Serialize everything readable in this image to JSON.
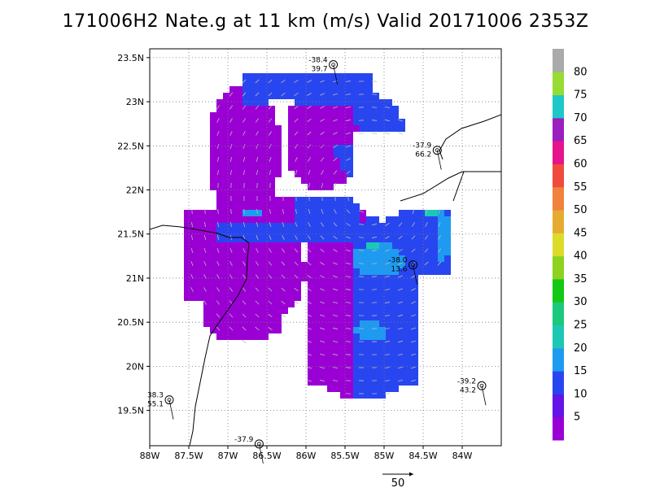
{
  "title": "171006H2 Nate.g at 11 km (m/s) Valid 20171006 2353Z",
  "chart_data": {
    "type": "heatmap",
    "description_units": "wind speed (m/s)",
    "xlim": [
      -88.0,
      -83.5
    ],
    "ylim": [
      19.1,
      23.6
    ],
    "x_ticks": [
      -88.0,
      -87.5,
      -87.0,
      -86.5,
      -86.0,
      -85.5,
      -85.0,
      -84.5,
      -84.0
    ],
    "x_tick_labels": [
      "88W",
      "87.5W",
      "87W",
      "86.5W",
      "86W",
      "85.5W",
      "85W",
      "84.5W",
      "84W"
    ],
    "y_ticks": [
      19.5,
      20.0,
      20.5,
      21.0,
      21.5,
      22.0,
      22.5,
      23.0,
      23.5
    ],
    "y_tick_labels": [
      "19.5N",
      "20N",
      "20.5N",
      "21N",
      "21.5N",
      "22N",
      "22.5N",
      "23N",
      "23.5N"
    ],
    "grid": true,
    "colorbar": {
      "labels": [
        "5",
        "10",
        "15",
        "20",
        "25",
        "30",
        "35",
        "40",
        "45",
        "50",
        "55",
        "60",
        "65",
        "70",
        "75",
        "80"
      ],
      "colors": [
        "#9a00d4",
        "#6414e6",
        "#2846f0",
        "#1e9bf0",
        "#1cc8b4",
        "#1cc87d",
        "#14c814",
        "#8cd21e",
        "#dcdc28",
        "#e6ac32",
        "#f0823c",
        "#f04b3c",
        "#e6148c",
        "#9b1ebe",
        "#1ec8c8",
        "#96dc32",
        "#aaaaaa"
      ]
    },
    "stations": [
      {
        "lon": -85.65,
        "lat": 23.42,
        "t": "-38.4",
        "v": "39.7"
      },
      {
        "lon": -84.32,
        "lat": 22.45,
        "t": "-37.9",
        "v": "66.2"
      },
      {
        "lon": -84.63,
        "lat": 21.15,
        "t": "-38.0",
        "v": "13.6"
      },
      {
        "lon": -83.75,
        "lat": 19.78,
        "t": "-39.2",
        "v": "43.2"
      },
      {
        "lon": -87.75,
        "lat": 19.62,
        "t": "38.3",
        "v": "55.1"
      },
      {
        "lon": -86.6,
        "lat": 19.12,
        "t": "-37.9",
        "v": ""
      }
    ],
    "reference_vector": {
      "label": "50"
    }
  }
}
